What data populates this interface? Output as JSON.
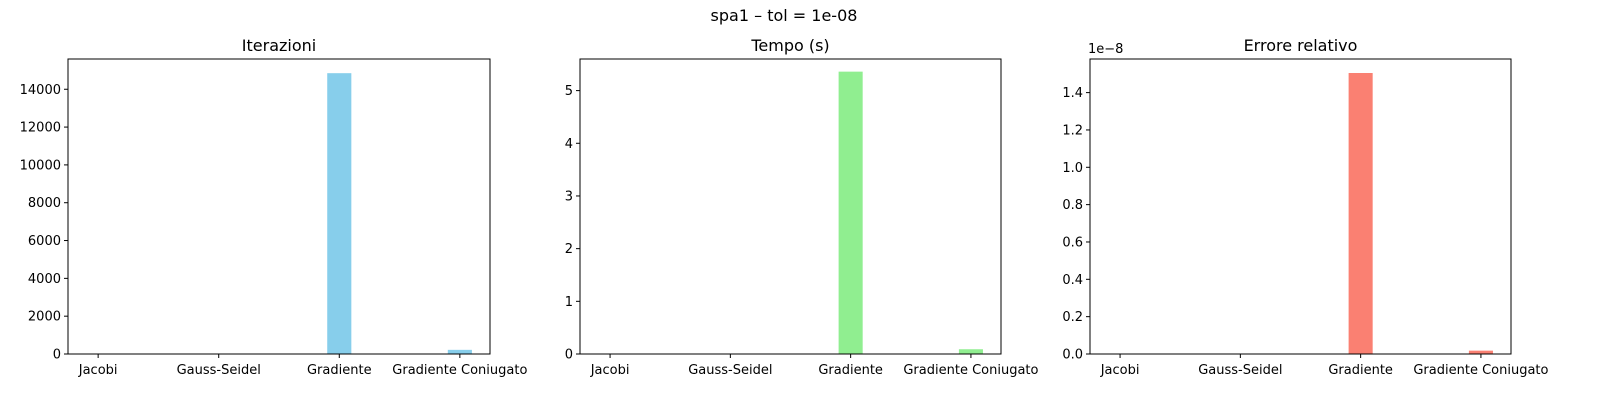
{
  "figure": {
    "suptitle": "spa1 – tol = 1e-08"
  },
  "chart_data": [
    {
      "type": "bar",
      "title": "Iterazioni",
      "categories": [
        "Jacobi",
        "Gauss-Seidel",
        "Gradiente",
        "Gradiente Coniugato"
      ],
      "values": [
        0,
        0,
        14850,
        220
      ],
      "ylim": [
        0,
        15600
      ],
      "yticks": [
        0,
        2000,
        4000,
        6000,
        8000,
        10000,
        12000,
        14000
      ],
      "ytick_labels": [
        "0",
        "2000",
        "4000",
        "6000",
        "8000",
        "10000",
        "12000",
        "14000"
      ],
      "offset_label": "",
      "color": "#87CEEB",
      "grid": false
    },
    {
      "type": "bar",
      "title": "Tempo (s)",
      "categories": [
        "Jacobi",
        "Gauss-Seidel",
        "Gradiente",
        "Gradiente Coniugato"
      ],
      "values": [
        0,
        0,
        5.36,
        0.09
      ],
      "ylim": [
        0,
        5.6
      ],
      "yticks": [
        0,
        1,
        2,
        3,
        4,
        5
      ],
      "ytick_labels": [
        "0",
        "1",
        "2",
        "3",
        "4",
        "5"
      ],
      "offset_label": "",
      "color": "#90EE90",
      "grid": false
    },
    {
      "type": "bar",
      "title": "Errore relativo",
      "categories": [
        "Jacobi",
        "Gauss-Seidel",
        "Gradiente",
        "Gradiente Coniugato"
      ],
      "values": [
        0,
        0,
        1.505e-08,
        1.8e-10
      ],
      "ylim": [
        0,
        1.58e-08
      ],
      "yticks": [
        0,
        2e-09,
        4e-09,
        6e-09,
        8e-09,
        1e-08,
        1.2e-08,
        1.4e-08
      ],
      "ytick_labels": [
        "0.0",
        "0.2",
        "0.4",
        "0.6",
        "0.8",
        "1.0",
        "1.2",
        "1.4"
      ],
      "offset_label": "1e−8",
      "color": "#FA8072",
      "grid": false
    }
  ]
}
